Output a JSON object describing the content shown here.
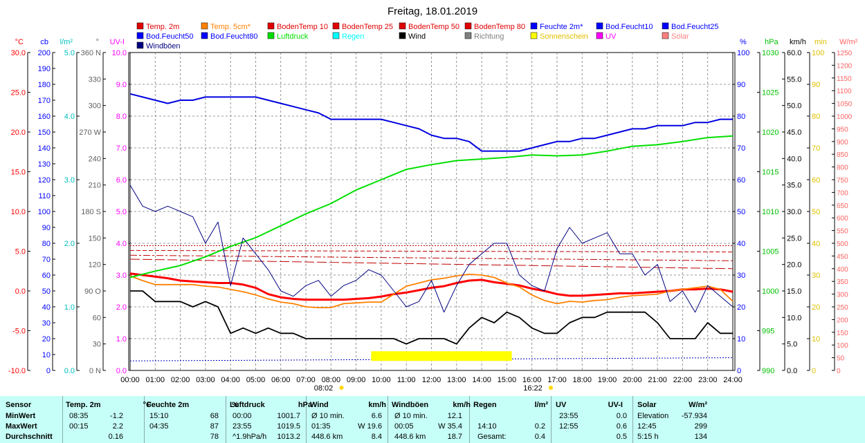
{
  "title": "Freitag, 18.01.2019",
  "colors": {
    "temp2m": "#ff0000",
    "temp5cm": "#ff8000",
    "boden": "#e00000",
    "feuchte": "#0000ff",
    "bodfeucht": "#0000c0",
    "luftdruck": "#00e000",
    "regen": "#00ffff",
    "wind": "#000000",
    "richtung": "#808080",
    "sonne": "#ffff00",
    "uv": "#ff00ff",
    "solar": "#ff6666",
    "boeen": "#000080"
  },
  "legend": [
    {
      "label": "Temp. 2m",
      "color": "#e00000"
    },
    {
      "label": "Temp. 5cm*",
      "color": "#ff8000"
    },
    {
      "label": "BodenTemp 10",
      "color": "#e00000"
    },
    {
      "label": "BodenTemp 25",
      "color": "#e00000"
    },
    {
      "label": "BodenTemp 50",
      "color": "#e00000"
    },
    {
      "label": "BodenTemp 80",
      "color": "#e00000"
    },
    {
      "label": "Feuchte 2m*",
      "color": "#0000ff"
    },
    {
      "label": "Bod.Feucht10",
      "color": "#0000ff"
    },
    {
      "label": "Bod.Feucht25",
      "color": "#0000ff"
    },
    {
      "label": "Bod.Feucht50",
      "color": "#0000ff"
    },
    {
      "label": "Bod.Feucht80",
      "color": "#0000ff"
    },
    {
      "label": "Luftdruck",
      "color": "#00e000"
    },
    {
      "label": "Regen",
      "color": "#00ffff"
    },
    {
      "label": "Wind",
      "color": "#000000"
    },
    {
      "label": "Richtung",
      "color": "#808080"
    },
    {
      "label": "Sonnenschein",
      "color": "#ffff00"
    },
    {
      "label": "UV",
      "color": "#ff00ff"
    },
    {
      "label": "Solar",
      "color": "#ff8080"
    },
    {
      "label": "Windböen",
      "color": "#000080"
    }
  ],
  "axes_left": [
    {
      "unit": "°C",
      "color": "#ff0000",
      "ticks": [
        "30.0",
        "25.0",
        "20.0",
        "15.0",
        "10.0",
        "5.0",
        "0.0",
        "-5.0",
        "-10.0"
      ]
    },
    {
      "unit": "cb",
      "color": "#0000ff",
      "ticks": [
        "200",
        "190",
        "180",
        "170",
        "160",
        "150",
        "140",
        "130",
        "120",
        "110",
        "100",
        "90",
        "80",
        "70",
        "60",
        "50",
        "40",
        "30",
        "20",
        "10",
        "0"
      ]
    },
    {
      "unit": "l/m²",
      "color": "#00c0c0",
      "ticks": [
        "5.0",
        "4.0",
        "3.0",
        "2.0",
        "1.0",
        "0.0"
      ]
    },
    {
      "unit": "°",
      "color": "#606060",
      "ticks": [
        "360 N",
        "330",
        "300",
        "270 W",
        "240",
        "210",
        "180 S",
        "150",
        "120",
        "90 O",
        "60",
        "30",
        "0 N"
      ]
    },
    {
      "unit": "UV-I",
      "color": "#ff00ff",
      "ticks": [
        "10.0",
        "9.0",
        "8.0",
        "7.0",
        "6.0",
        "5.0",
        "4.0",
        "3.0",
        "2.0",
        "1.0",
        "0.0"
      ]
    }
  ],
  "axes_right": [
    {
      "unit": "%",
      "color": "#0000ff",
      "ticks": [
        "100",
        "90",
        "80",
        "70",
        "60",
        "50",
        "40",
        "30",
        "20",
        "10",
        "0"
      ]
    },
    {
      "unit": "hPa",
      "color": "#00c000",
      "ticks": [
        "1030",
        "1025",
        "1020",
        "1015",
        "1010",
        "1005",
        "1000",
        "995",
        "990"
      ]
    },
    {
      "unit": "km/h",
      "color": "#000000",
      "ticks": [
        "60.0",
        "55.0",
        "50.0",
        "45.0",
        "40.0",
        "35.0",
        "30.0",
        "25.0",
        "20.0",
        "15.0",
        "10.0",
        "5.0",
        "0.0"
      ]
    },
    {
      "unit": "min",
      "color": "#e0c000",
      "ticks": [
        "100",
        "90",
        "80",
        "70",
        "60",
        "50",
        "40",
        "30",
        "20",
        "10",
        "0"
      ]
    },
    {
      "unit": "W/m²",
      "color": "#ff6060",
      "ticks": [
        "1250",
        "1200",
        "1150",
        "1100",
        "1050",
        "1000",
        "950",
        "900",
        "850",
        "800",
        "750",
        "700",
        "650",
        "600",
        "550",
        "500",
        "450",
        "400",
        "350",
        "300",
        "250",
        "200",
        "150",
        "100",
        "50",
        "0"
      ]
    }
  ],
  "x_ticks": [
    "00:00",
    "01:00",
    "02:00",
    "03:00",
    "04:00",
    "05:00",
    "06:00",
    "07:00",
    "08:00",
    "09:00",
    "10:00",
    "11:00",
    "12:00",
    "13:00",
    "14:00",
    "15:00",
    "16:00",
    "17:00",
    "18:00",
    "19:00",
    "20:00",
    "21:00",
    "22:00",
    "23:00",
    "24:00"
  ],
  "sun": {
    "rise": "08:02",
    "set": "16:22"
  },
  "chart_data": {
    "type": "line",
    "title": "Freitag, 18.01.2019",
    "x_unit": "h",
    "xlim": [
      0,
      24
    ],
    "series": [
      {
        "name": "Temp. 2m",
        "axis": "°C",
        "x": [
          0,
          0.5,
          1,
          1.5,
          2,
          2.5,
          3,
          3.5,
          4,
          4.5,
          5,
          5.5,
          6,
          6.5,
          7,
          7.5,
          8,
          8.5,
          9,
          9.5,
          10,
          10.5,
          11,
          11.5,
          12,
          12.5,
          13,
          13.5,
          14,
          14.5,
          15,
          15.5,
          16,
          16.5,
          17,
          17.5,
          18,
          18.5,
          19,
          19.5,
          20,
          20.5,
          21,
          21.5,
          22,
          22.5,
          23,
          23.5,
          24
        ],
        "y": [
          2.2,
          2.0,
          1.8,
          1.6,
          1.3,
          1.2,
          1.1,
          1.0,
          1.0,
          0.8,
          0.4,
          -0.4,
          -0.8,
          -1.0,
          -1.1,
          -1.1,
          -1.1,
          -1.1,
          -1.0,
          -0.9,
          -0.7,
          -0.4,
          -0.2,
          0.1,
          0.4,
          0.6,
          1.0,
          1.3,
          1.4,
          1.1,
          0.9,
          0.7,
          0.3,
          0.0,
          -0.4,
          -0.6,
          -0.6,
          -0.5,
          -0.4,
          -0.3,
          -0.3,
          -0.2,
          -0.1,
          0.0,
          0.2,
          0.2,
          0.3,
          0.2,
          -0.1
        ]
      },
      {
        "name": "Temp. 5cm*",
        "axis": "°C",
        "x": [
          0,
          0.5,
          1,
          1.5,
          2,
          2.5,
          3,
          3.5,
          4,
          4.5,
          5,
          5.5,
          6,
          6.5,
          7,
          7.5,
          8,
          8.5,
          9,
          9.5,
          10,
          10.5,
          11,
          11.5,
          12,
          12.5,
          13,
          13.5,
          14,
          14.5,
          15,
          15.5,
          16,
          16.5,
          17,
          17.5,
          18,
          18.5,
          19,
          19.5,
          20,
          20.5,
          21,
          21.5,
          22,
          22.5,
          23,
          23.5,
          24
        ],
        "y": [
          1.9,
          1.3,
          0.8,
          0.8,
          0.8,
          0.8,
          0.6,
          0.5,
          0.2,
          -0.1,
          -0.5,
          -1.0,
          -1.4,
          -1.6,
          -2.0,
          -2.1,
          -2.1,
          -1.6,
          -1.5,
          -1.4,
          -1.4,
          -0.4,
          0.6,
          1.0,
          1.4,
          1.6,
          1.9,
          2.1,
          2.0,
          1.7,
          1.0,
          0.5,
          -0.5,
          -1.2,
          -1.6,
          -1.3,
          -1.4,
          -1.2,
          -1.1,
          -0.8,
          -0.6,
          -0.5,
          -0.4,
          0.0,
          0.2,
          0.4,
          0.6,
          0.2,
          -1.3
        ]
      },
      {
        "name": "BodenTemp 10",
        "axis": "°C",
        "x": [
          0,
          24
        ],
        "y": [
          4.0,
          2.8
        ]
      },
      {
        "name": "BodenTemp 25",
        "axis": "°C",
        "x": [
          0,
          24
        ],
        "y": [
          4.5,
          3.8
        ]
      },
      {
        "name": "BodenTemp 50",
        "axis": "°C",
        "x": [
          0,
          24
        ],
        "y": [
          5.1,
          4.9
        ]
      },
      {
        "name": "BodenTemp 80",
        "axis": "°C",
        "x": [
          0,
          24
        ],
        "y": [
          5.7,
          5.7
        ]
      },
      {
        "name": "Feuchte 2m*",
        "axis": "%",
        "x": [
          0,
          0.5,
          1,
          1.5,
          2,
          2.5,
          3,
          3.5,
          4,
          4.5,
          5,
          5.5,
          6,
          6.5,
          7,
          7.5,
          8,
          8.5,
          9,
          9.5,
          10,
          10.5,
          11,
          11.5,
          12,
          12.5,
          13,
          13.5,
          14,
          14.5,
          15,
          15.5,
          16,
          16.5,
          17,
          17.5,
          18,
          18.5,
          19,
          19.5,
          20,
          20.5,
          21,
          21.5,
          22,
          22.5,
          23,
          23.5,
          24
        ],
        "y": [
          87,
          86,
          85,
          84,
          85,
          85,
          86,
          86,
          86,
          86,
          86,
          85,
          84,
          83,
          82,
          81,
          79,
          79,
          79,
          79,
          79,
          78,
          77,
          76,
          74,
          73,
          73,
          72,
          69,
          69,
          69,
          69,
          70,
          71,
          72,
          72,
          73,
          73,
          74,
          75,
          76,
          76,
          77,
          77,
          77,
          78,
          78,
          79,
          79
        ]
      },
      {
        "name": "Bod.Feucht80",
        "axis": "%",
        "x": [
          0,
          24
        ],
        "y": [
          3,
          4
        ]
      },
      {
        "name": "Luftdruck",
        "axis": "hPa",
        "x": [
          0,
          1,
          2,
          3,
          4,
          5,
          6,
          7,
          8,
          9,
          10,
          11,
          12,
          13,
          14,
          15,
          16,
          17,
          18,
          19,
          20,
          21,
          22,
          23,
          24
        ],
        "y": [
          1001.7,
          1002.5,
          1003.2,
          1004.3,
          1005.6,
          1006.7,
          1008.2,
          1009.7,
          1011.0,
          1012.7,
          1014.0,
          1015.3,
          1015.9,
          1016.4,
          1016.6,
          1016.8,
          1017.1,
          1017.0,
          1017.1,
          1017.6,
          1018.2,
          1018.4,
          1018.8,
          1019.3,
          1019.5
        ]
      },
      {
        "name": "Wind",
        "axis": "km/h",
        "x": [
          0,
          0.5,
          1,
          1.5,
          2,
          2.5,
          3,
          3.5,
          4,
          4.5,
          5,
          5.5,
          6,
          6.5,
          7,
          7.5,
          8,
          8.5,
          9,
          9.5,
          10,
          10.5,
          11,
          11.5,
          12,
          12.5,
          13,
          13.5,
          14,
          14.5,
          15,
          15.5,
          16,
          16.5,
          17,
          17.5,
          18,
          18.5,
          19,
          19.5,
          20,
          20.5,
          21,
          21.5,
          22,
          22.5,
          23,
          23.5,
          24
        ],
        "y": [
          15,
          15,
          13,
          13,
          13,
          12,
          13,
          12,
          7,
          8,
          7,
          8,
          7,
          7,
          6,
          6,
          6,
          6,
          6,
          6,
          6,
          6,
          5,
          6,
          6,
          6,
          5,
          8,
          10,
          9,
          11,
          10,
          8,
          7,
          7,
          9,
          10,
          10,
          11,
          11,
          11,
          11,
          9,
          6,
          6,
          6,
          9,
          7,
          7
        ]
      },
      {
        "name": "Windböen",
        "axis": "km/h",
        "x": [
          0,
          0.5,
          1,
          1.5,
          2,
          2.5,
          3,
          3.5,
          4,
          4.5,
          5,
          5.5,
          6,
          6.5,
          7,
          7.5,
          8,
          8.5,
          9,
          9.5,
          10,
          10.5,
          11,
          11.5,
          12,
          12.5,
          13,
          13.5,
          14,
          14.5,
          15,
          15.5,
          16,
          16.5,
          17,
          17.5,
          18,
          18.5,
          19,
          19.5,
          20,
          20.5,
          21,
          21.5,
          22,
          22.5,
          23,
          23.5,
          24
        ],
        "y": [
          35,
          31,
          30,
          31,
          30,
          29,
          24,
          28,
          16,
          25,
          22,
          19,
          15,
          14,
          16,
          17,
          14,
          16,
          17,
          19,
          18,
          15,
          12,
          13,
          17,
          11,
          16,
          20,
          22,
          24,
          24,
          18,
          16,
          15,
          23,
          27,
          24,
          25,
          26,
          22,
          22,
          18,
          20,
          13,
          15,
          11,
          16,
          14,
          12
        ]
      },
      {
        "name": "Sonnenschein",
        "axis": "min",
        "x": [
          9.6,
          15.2
        ],
        "y": [
          4.5,
          4.5
        ]
      }
    ]
  },
  "stats": {
    "headers": [
      "Sensor",
      "Temp. 2m",
      "°C",
      "Feuchte 2m",
      "%",
      "Luftdruck",
      "hPa",
      "Wind",
      "km/h",
      "Windböen",
      "km/h",
      "Regen",
      "l/m²",
      "UV",
      "UV-I",
      "Solar",
      "W/m²"
    ],
    "rows": [
      {
        "label": "MinWert",
        "cells": [
          "08:35",
          "-1.2",
          "15:10",
          "68",
          "00:00",
          "1001.7",
          "Ø 10 min.",
          "6.6",
          "Ø 10 min.",
          "12.1",
          "",
          "",
          "23:55",
          "0.0",
          "Elevation",
          "-57.934"
        ]
      },
      {
        "label": "MaxWert",
        "cells": [
          "00:15",
          "2.2",
          "04:35",
          "87",
          "23:55",
          "1019.5",
          "01:35",
          "W 19.6",
          "00:05",
          "W 35.4",
          "14:10",
          "0.2",
          "12:55",
          "0.6",
          "12:45",
          "299"
        ]
      },
      {
        "label": "Durchschnitt",
        "cells": [
          "",
          "0.16",
          "",
          "78",
          "^1.9hPa/h",
          "1013.2",
          "448.6 km",
          "8.4",
          "448.6 km",
          "18.7",
          "Gesamt:",
          "0.4",
          "",
          "0.5",
          "5:15 h",
          "134"
        ]
      }
    ]
  }
}
